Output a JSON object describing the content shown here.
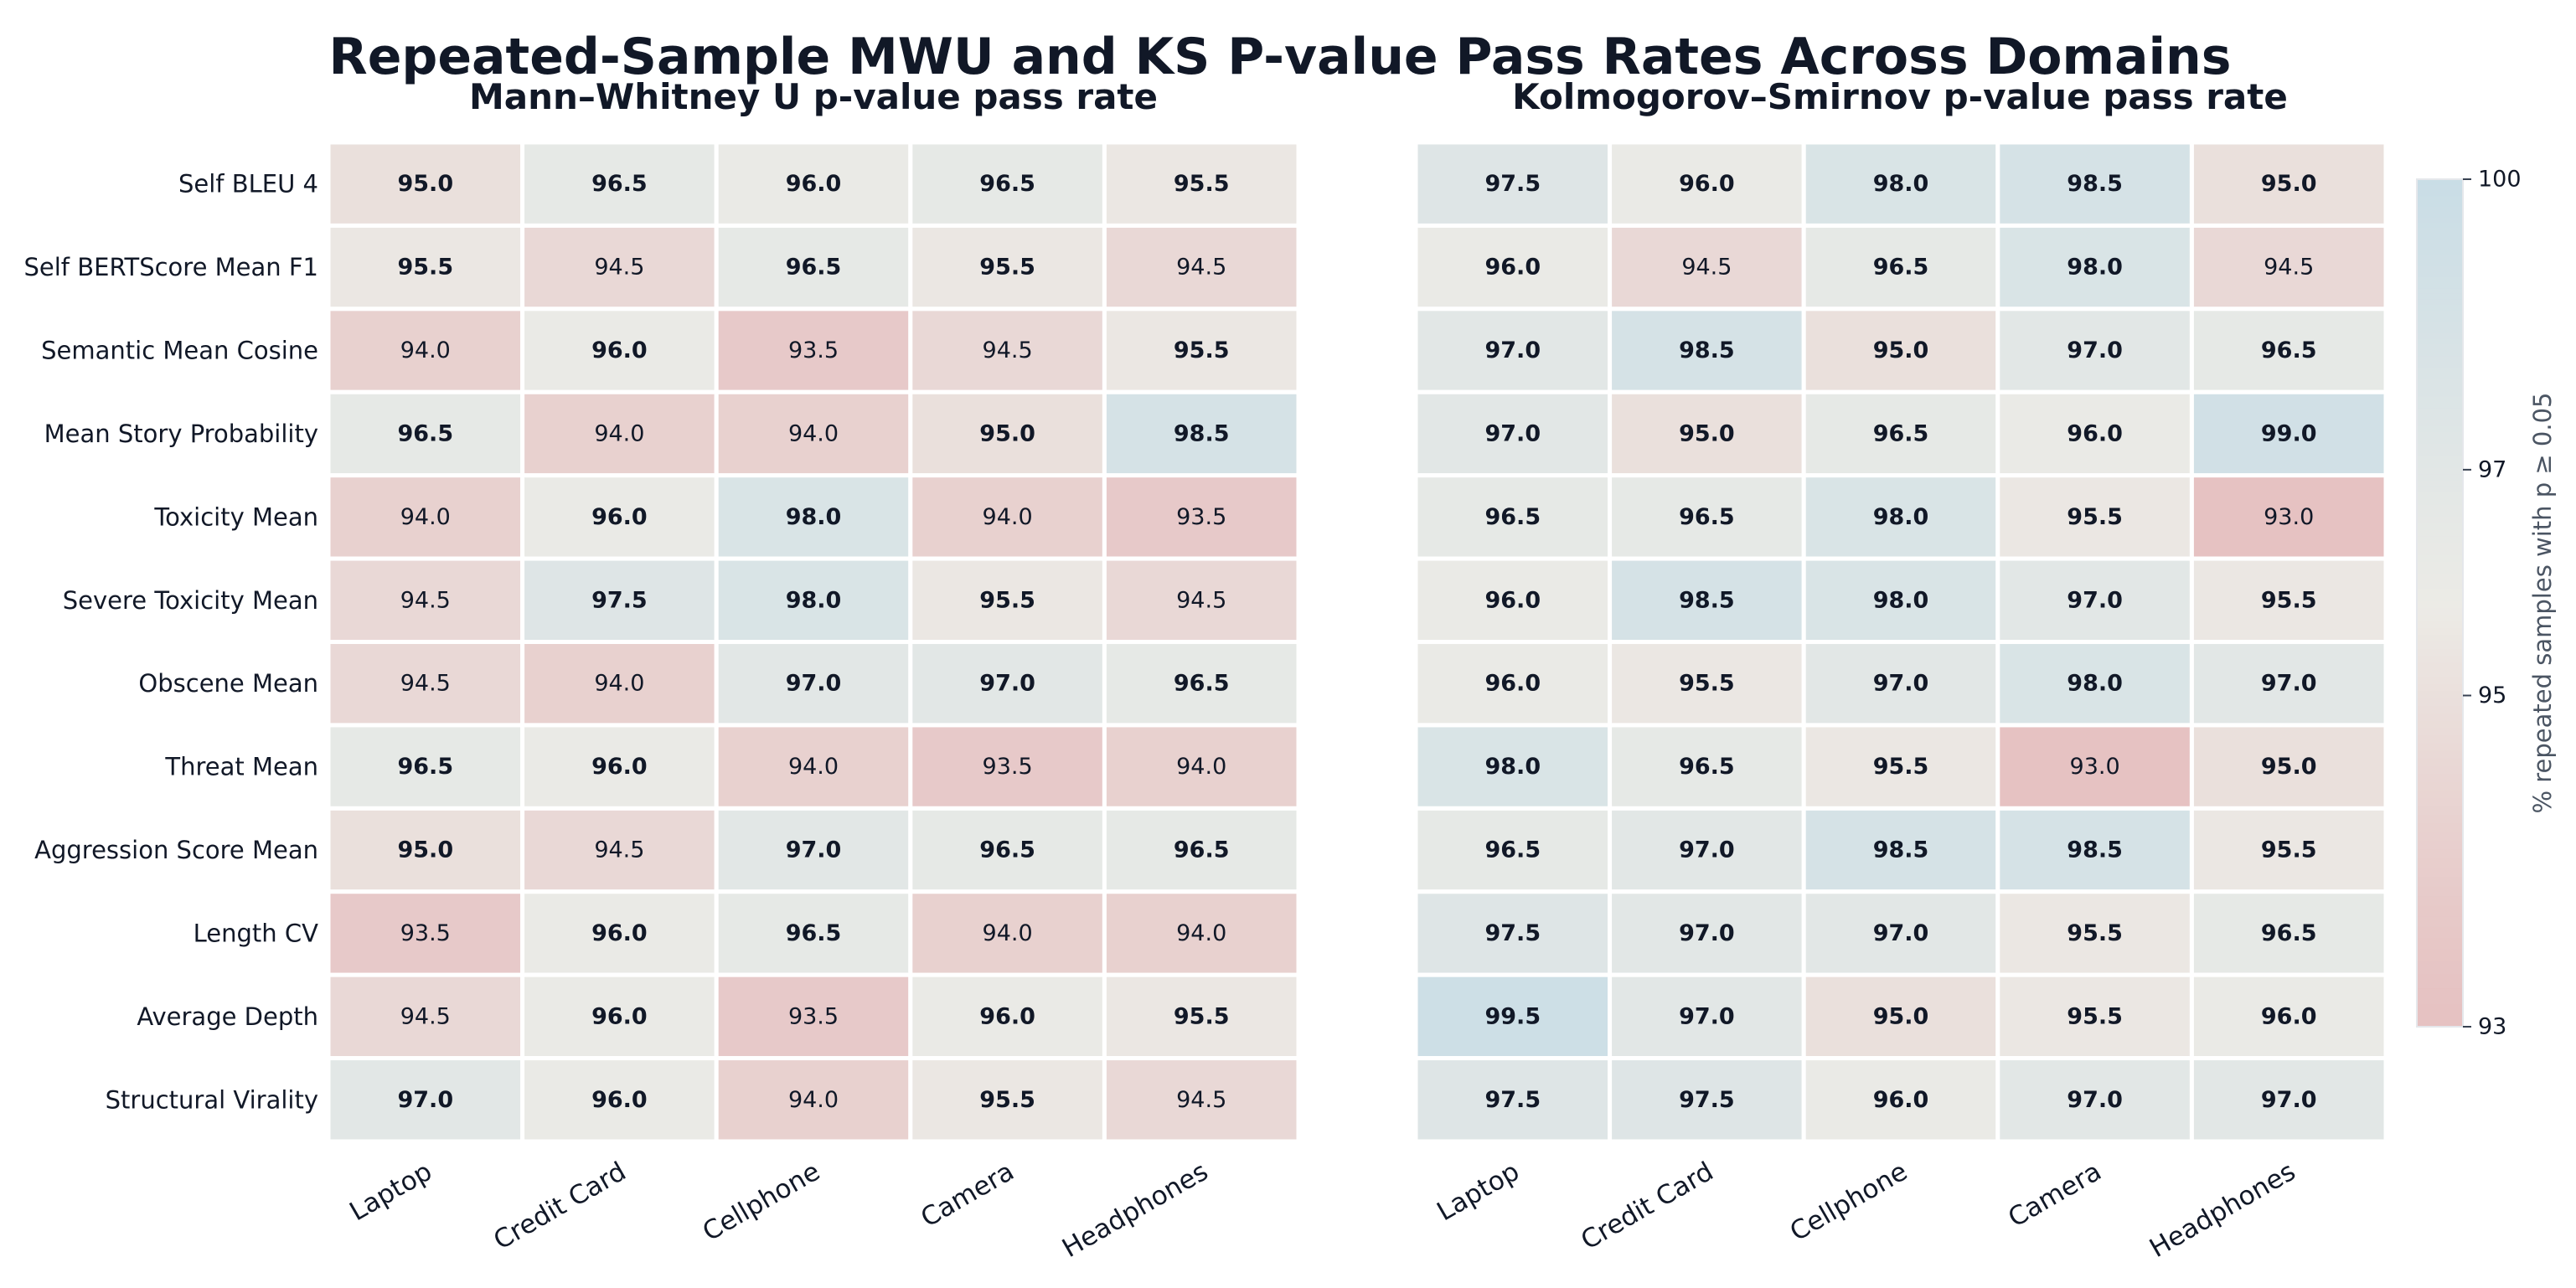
{
  "title": "Repeated-Sample MWU and KS P-value Pass Rates Across Domains",
  "chart_data": [
    {
      "type": "heatmap",
      "title": "Mann–Whitney U p-value pass rate",
      "rows": [
        "Self BLEU 4",
        "Self BERTScore Mean F1",
        "Semantic Mean Cosine",
        "Mean Story Probability",
        "Toxicity Mean",
        "Severe Toxicity Mean",
        "Obscene Mean",
        "Threat Mean",
        "Aggression Score Mean",
        "Length CV",
        "Average Depth",
        "Structural Virality"
      ],
      "columns": [
        "Laptop",
        "Credit Card",
        "Cellphone",
        "Camera",
        "Headphones"
      ],
      "values": [
        [
          95.0,
          96.5,
          96.0,
          96.5,
          95.5
        ],
        [
          95.5,
          94.5,
          96.5,
          95.5,
          94.5
        ],
        [
          94.0,
          96.0,
          93.5,
          94.5,
          95.5
        ],
        [
          96.5,
          94.0,
          94.0,
          95.0,
          98.5
        ],
        [
          94.0,
          96.0,
          98.0,
          94.0,
          93.5
        ],
        [
          94.5,
          97.5,
          98.0,
          95.5,
          94.5
        ],
        [
          94.5,
          94.0,
          97.0,
          97.0,
          96.5
        ],
        [
          96.5,
          96.0,
          94.0,
          93.5,
          94.0
        ],
        [
          95.0,
          94.5,
          97.0,
          96.5,
          96.5
        ],
        [
          93.5,
          96.0,
          96.5,
          94.0,
          94.0
        ],
        [
          94.5,
          96.0,
          93.5,
          96.0,
          95.5
        ],
        [
          97.0,
          96.0,
          94.0,
          95.5,
          94.5
        ]
      ]
    },
    {
      "type": "heatmap",
      "title": "Kolmogorov–Smirnov p-value pass rate",
      "rows": [
        "Self BLEU 4",
        "Self BERTScore Mean F1",
        "Semantic Mean Cosine",
        "Mean Story Probability",
        "Toxicity Mean",
        "Severe Toxicity Mean",
        "Obscene Mean",
        "Threat Mean",
        "Aggression Score Mean",
        "Length CV",
        "Average Depth",
        "Structural Virality"
      ],
      "columns": [
        "Laptop",
        "Credit Card",
        "Cellphone",
        "Camera",
        "Headphones"
      ],
      "values": [
        [
          97.5,
          96.0,
          98.0,
          98.5,
          95.0
        ],
        [
          96.0,
          94.5,
          96.5,
          98.0,
          94.5
        ],
        [
          97.0,
          98.5,
          95.0,
          97.0,
          96.5
        ],
        [
          97.0,
          95.0,
          96.5,
          96.0,
          99.0
        ],
        [
          96.5,
          96.5,
          98.0,
          95.5,
          93.0
        ],
        [
          96.0,
          98.5,
          98.0,
          97.0,
          95.5
        ],
        [
          96.0,
          95.5,
          97.0,
          98.0,
          97.0
        ],
        [
          98.0,
          96.5,
          95.5,
          93.0,
          95.0
        ],
        [
          96.5,
          97.0,
          98.5,
          98.5,
          95.5
        ],
        [
          97.5,
          97.0,
          97.0,
          95.5,
          96.5
        ],
        [
          99.5,
          97.0,
          95.0,
          95.5,
          96.0
        ],
        [
          97.5,
          97.5,
          96.0,
          97.0,
          97.0
        ]
      ]
    }
  ],
  "colorbar": {
    "label": "% repeated samples with p ≥ 0.05",
    "range": [
      93,
      100
    ],
    "ticks": [
      "93",
      "95",
      "97",
      "100"
    ],
    "colors": {
      "low": "#e6c2c2",
      "mid": "#ecebe6",
      "high": "#c9dde6"
    }
  }
}
